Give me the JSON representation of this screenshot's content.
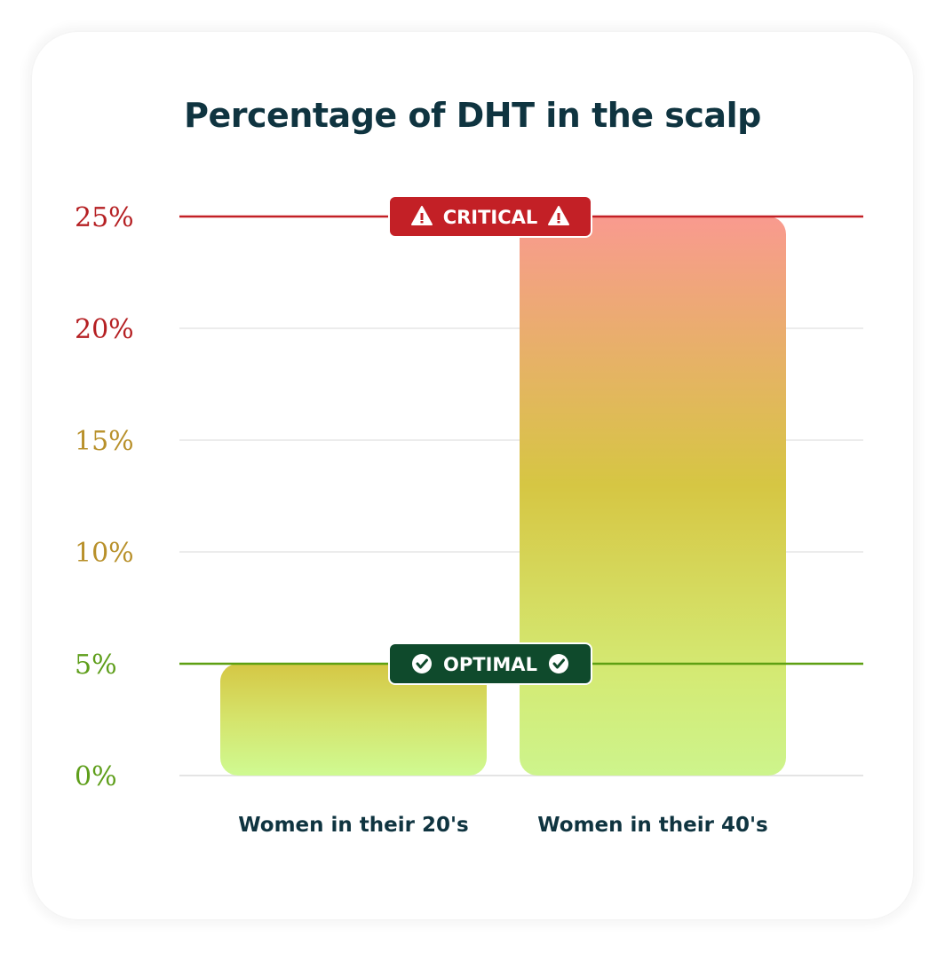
{
  "chart_data": {
    "type": "bar",
    "title": "Percentage of DHT in the scalp",
    "xlabel": "",
    "ylabel": "",
    "categories": [
      "Women in their 20's",
      "Women in their 40's"
    ],
    "values": [
      5,
      25
    ],
    "ylim": [
      0,
      25
    ],
    "y_ticks": [
      {
        "value": 0,
        "label": "0%",
        "color": "#5e9e1a"
      },
      {
        "value": 5,
        "label": "5%",
        "color": "#5e9e1a"
      },
      {
        "value": 10,
        "label": "10%",
        "color": "#b8902a"
      },
      {
        "value": 15,
        "label": "15%",
        "color": "#b8902a"
      },
      {
        "value": 20,
        "label": "20%",
        "color": "#b51f22"
      },
      {
        "value": 25,
        "label": "25%",
        "color": "#b51f22"
      }
    ],
    "grid": true,
    "reference_lines": [
      {
        "value": 25,
        "label": "CRITICAL",
        "icon": "warning-icon",
        "color": "#c32026"
      },
      {
        "value": 5,
        "label": "OPTIMAL",
        "icon": "check-circle-icon",
        "color": "#0f4a2c"
      }
    ],
    "bar_gradient": {
      "low": "#cff78a",
      "mid": "#d8c340",
      "high": "#f7988c"
    },
    "colors": {
      "title": "#0f3440",
      "category_label": "#0f3440",
      "critical_line": "#c32026",
      "optimal_line": "#5ea012",
      "gridline": "#ececec"
    }
  }
}
